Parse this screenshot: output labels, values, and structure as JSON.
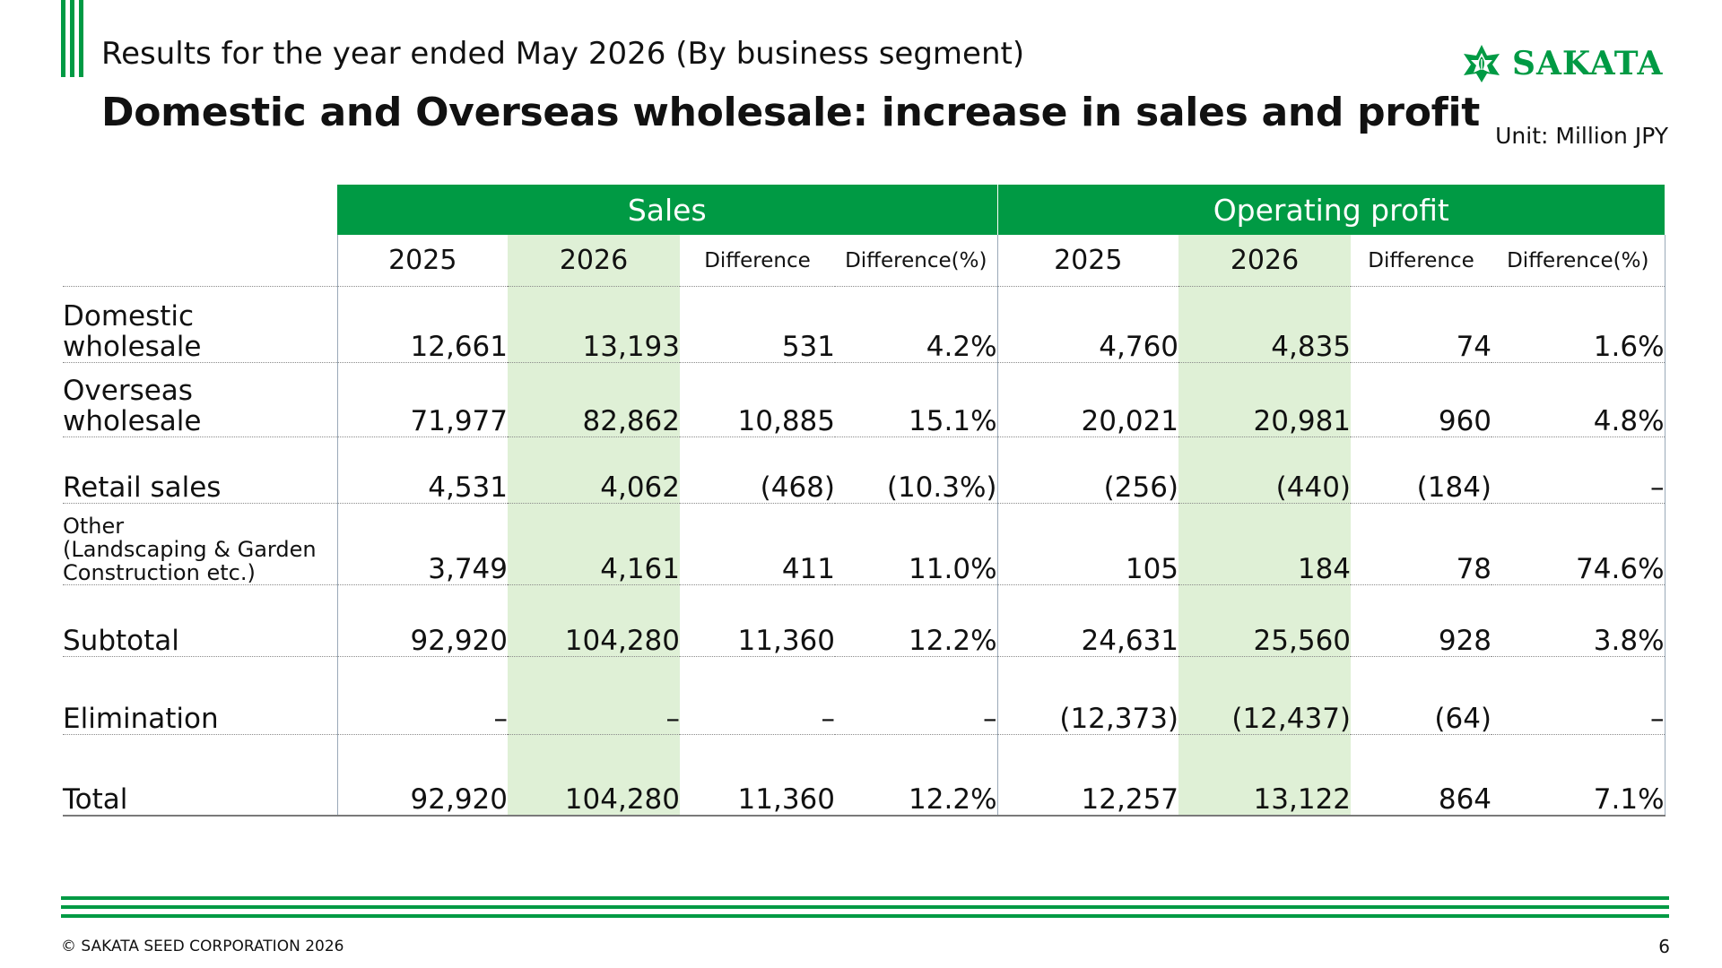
{
  "header": {
    "subtitle": "Results for the year ended May 2026 (By business segment)",
    "title": "Domestic and Overseas wholesale: increase in sales and profit",
    "unit": "Unit: Million JPY"
  },
  "logo": {
    "text": "SAKATA",
    "icon": "sakata-leaf-emblem-icon",
    "color": "#009a44"
  },
  "table": {
    "groups": {
      "sales": "Sales",
      "profit": "Operating profit"
    },
    "columns": {
      "y2025": "2025",
      "y2026": "2026",
      "diff": "Difference",
      "diff_pct": "Difference(%)"
    },
    "rows": [
      {
        "label_line1": "Domestic",
        "label_line2": "wholesale",
        "sales_2025": "12,661",
        "sales_2026": "13,193",
        "sales_diff": "531",
        "sales_pct": "4.2%",
        "profit_2025": "4,760",
        "profit_2026": "4,835",
        "profit_diff": "74",
        "profit_pct": "1.6%"
      },
      {
        "label_line1": "Overseas",
        "label_line2": "wholesale",
        "sales_2025": "71,977",
        "sales_2026": "82,862",
        "sales_diff": "10,885",
        "sales_pct": "15.1%",
        "profit_2025": "20,021",
        "profit_2026": "20,981",
        "profit_diff": "960",
        "profit_pct": "4.8%"
      },
      {
        "label": "Retail sales",
        "sales_2025": "4,531",
        "sales_2026": "4,062",
        "sales_diff": "(468)",
        "sales_pct": "(10.3%)",
        "profit_2025": "(256)",
        "profit_2026": "(440)",
        "profit_diff": "(184)",
        "profit_pct": "–"
      },
      {
        "label_line1": "Other",
        "label_line2": "(Landscaping & Garden",
        "label_line3": "Construction etc.)",
        "sales_2025": "3,749",
        "sales_2026": "4,161",
        "sales_diff": "411",
        "sales_pct": "11.0%",
        "profit_2025": "105",
        "profit_2026": "184",
        "profit_diff": "78",
        "profit_pct": "74.6%"
      },
      {
        "label": "Subtotal",
        "sales_2025": "92,920",
        "sales_2026": "104,280",
        "sales_diff": "11,360",
        "sales_pct": "12.2%",
        "profit_2025": "24,631",
        "profit_2026": "25,560",
        "profit_diff": "928",
        "profit_pct": "3.8%"
      },
      {
        "label": "Elimination",
        "sales_2025": "–",
        "sales_2026": "–",
        "sales_diff": "–",
        "sales_pct": "–",
        "profit_2025": "(12,373)",
        "profit_2026": "(12,437)",
        "profit_diff": "(64)",
        "profit_pct": "–"
      },
      {
        "label": "Total",
        "sales_2025": "92,920",
        "sales_2026": "104,280",
        "sales_diff": "11,360",
        "sales_pct": "12.2%",
        "profit_2025": "12,257",
        "profit_2026": "13,122",
        "profit_diff": "864",
        "profit_pct": "7.1%"
      }
    ]
  },
  "footer": {
    "copyright": "© SAKATA SEED CORPORATION 2026",
    "page_number": "6"
  },
  "colors": {
    "brand_green": "#009a44",
    "highlight_fill": "#dff0d6"
  }
}
